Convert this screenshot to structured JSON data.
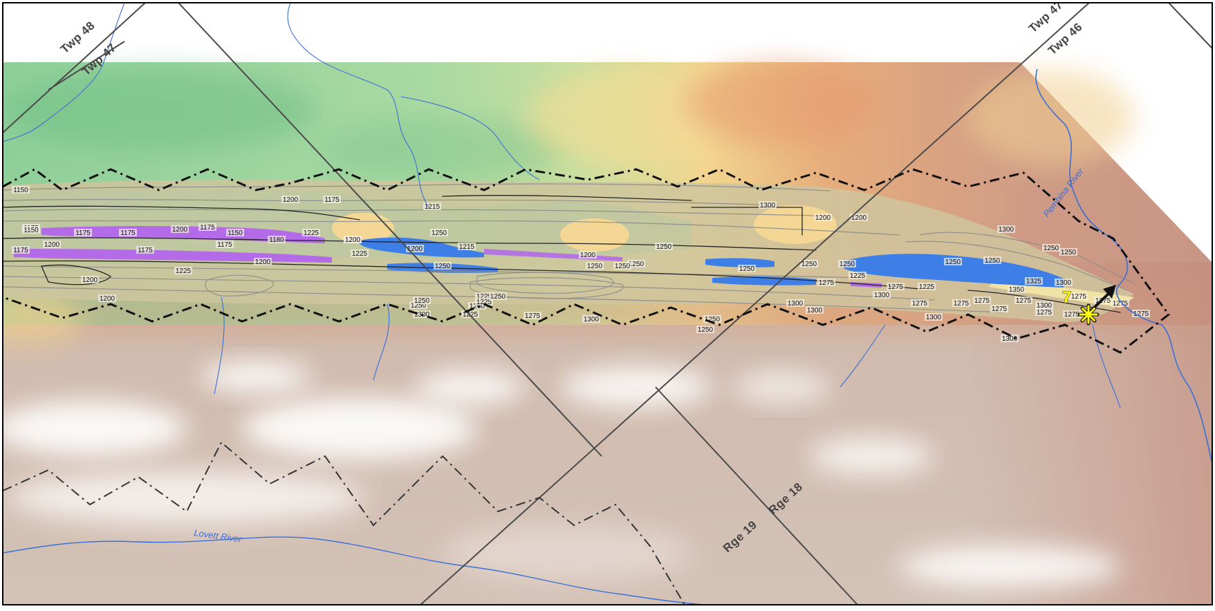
{
  "map": {
    "grid_labels": {
      "twp48": "Twp 48",
      "twp47_left": "Twp 47",
      "twp47_right": "Twp 47",
      "twp46": "Twp 46",
      "rge18": "Rge 18",
      "rge19": "Rge 19"
    },
    "rivers": {
      "pembina": "Pembina River",
      "lovett": "Lovett River"
    },
    "marker": {
      "label": "7",
      "color": "#ffff00"
    },
    "contour_labels": [
      "1150",
      "1175",
      "1150",
      "1175",
      "1200",
      "1175",
      "1200",
      "1200",
      "1175",
      "1200",
      "1225",
      "1175",
      "1200",
      "1175",
      "1175",
      "1150",
      "1200",
      "1180",
      "1175",
      "1225",
      "1200",
      "1225",
      "1200",
      "1250",
      "1200",
      "1215",
      "1215",
      "1250",
      "1200",
      "1250",
      "1250",
      "1250",
      "1250",
      "1250",
      "1300",
      "1250",
      "1200",
      "1275",
      "1250",
      "1300",
      "1225",
      "1200",
      "1250",
      "1275",
      "1225",
      "1250",
      "1300",
      "1350",
      "1325",
      "1275",
      "1250",
      "1250",
      "1300",
      "1275",
      "1300",
      "1275",
      "1275",
      "1275",
      "1275",
      "1275",
      "1275",
      "1275",
      "1275",
      "1275",
      "1300",
      "1300",
      "1250",
      "1250",
      "1275",
      "1225",
      "1200",
      "1225",
      "1300",
      "1250",
      "1300",
      "1300",
      "1300",
      "1225",
      "1250",
      "1250"
    ],
    "colors": {
      "water": "#3d7fe6",
      "river": "#3a6fd8",
      "deposit_violet": "#b36be8",
      "deposit_sand": "#f5d795"
    }
  }
}
